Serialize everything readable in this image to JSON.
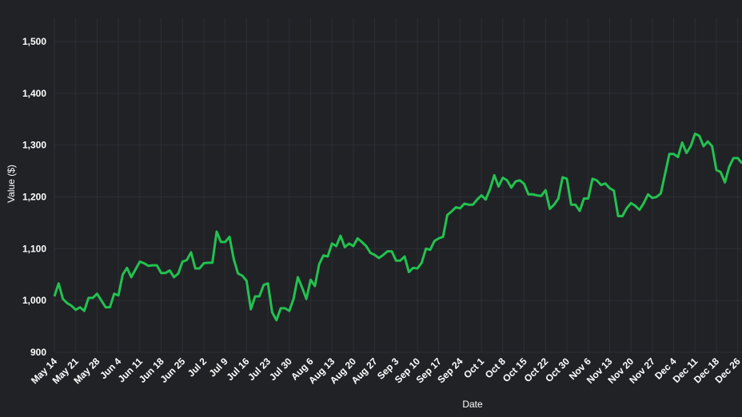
{
  "chart_data": {
    "type": "line",
    "x_label": "Date",
    "y_label": "Value ($)",
    "categories": [
      "May 14",
      null,
      null,
      null,
      null,
      "May 21",
      null,
      null,
      null,
      null,
      "May 28",
      null,
      null,
      null,
      null,
      "Jun 4",
      null,
      null,
      null,
      null,
      "Jun 11",
      null,
      null,
      null,
      null,
      "Jun 18",
      null,
      null,
      null,
      null,
      "Jun 25",
      null,
      null,
      null,
      null,
      "Jul 2",
      null,
      null,
      null,
      null,
      "Jul 9",
      null,
      null,
      null,
      null,
      "Jul 16",
      null,
      null,
      null,
      null,
      "Jul 23",
      null,
      null,
      null,
      null,
      "Jul 30",
      null,
      null,
      null,
      null,
      "Aug 6",
      null,
      null,
      null,
      null,
      "Aug 13",
      null,
      null,
      null,
      null,
      "Aug 20",
      null,
      null,
      null,
      null,
      "Aug 27",
      null,
      null,
      null,
      null,
      "Sep 3",
      null,
      null,
      null,
      null,
      "Sep 10",
      null,
      null,
      null,
      null,
      "Sep 17",
      null,
      null,
      null,
      null,
      "Sep 24",
      null,
      null,
      null,
      null,
      "Oct 1",
      null,
      null,
      null,
      null,
      "Oct 8",
      null,
      null,
      null,
      null,
      "Oct 15",
      null,
      null,
      null,
      null,
      "Oct 22",
      null,
      null,
      null,
      null,
      "Oct 30",
      null,
      null,
      null,
      null,
      "Nov 6",
      null,
      null,
      null,
      null,
      "Nov 13",
      null,
      null,
      null,
      null,
      "Nov 20",
      null,
      null,
      null,
      null,
      "Nov 27",
      null,
      null,
      null,
      null,
      "Dec 4",
      null,
      null,
      null,
      null,
      "Dec 11",
      null,
      null,
      null,
      null,
      "Dec 18",
      null,
      null,
      null,
      null,
      "Dec 26",
      null
    ],
    "series": [
      {
        "color": "#22c24f",
        "values": [
          1008,
          1033,
          1003,
          995,
          990,
          982,
          987,
          980,
          1005,
          1005,
          1013,
          1000,
          987,
          987,
          1013,
          1010,
          1050,
          1063,
          1045,
          1060,
          1075,
          1072,
          1067,
          1068,
          1068,
          1053,
          1053,
          1058,
          1045,
          1052,
          1075,
          1078,
          1093,
          1062,
          1062,
          1072,
          1073,
          1073,
          1133,
          1113,
          1113,
          1123,
          1080,
          1052,
          1048,
          1038,
          983,
          1008,
          1008,
          1030,
          1033,
          977,
          962,
          985,
          985,
          980,
          1003,
          1045,
          1025,
          1003,
          1040,
          1028,
          1070,
          1087,
          1085,
          1110,
          1105,
          1125,
          1103,
          1110,
          1105,
          1120,
          1113,
          1105,
          1092,
          1088,
          1082,
          1088,
          1095,
          1095,
          1077,
          1077,
          1085,
          1055,
          1063,
          1062,
          1073,
          1100,
          1098,
          1115,
          1120,
          1123,
          1165,
          1172,
          1180,
          1178,
          1187,
          1185,
          1185,
          1195,
          1203,
          1195,
          1215,
          1242,
          1220,
          1237,
          1232,
          1218,
          1230,
          1232,
          1225,
          1205,
          1205,
          1203,
          1202,
          1213,
          1177,
          1185,
          1197,
          1238,
          1235,
          1185,
          1185,
          1173,
          1197,
          1197,
          1235,
          1232,
          1223,
          1226,
          1217,
          1212,
          1163,
          1163,
          1178,
          1188,
          1183,
          1175,
          1188,
          1205,
          1198,
          1200,
          1207,
          1245,
          1283,
          1283,
          1277,
          1305,
          1285,
          1298,
          1322,
          1318,
          1298,
          1307,
          1298,
          1252,
          1248,
          1228,
          1258,
          1275,
          1275,
          1265
        ]
      }
    ],
    "ylim": [
      900,
      1500
    ],
    "yticks": [
      900,
      {
        "value": 1000,
        "label": "1,000"
      },
      {
        "value": 1100,
        "label": "1,100"
      },
      {
        "value": 1200,
        "label": "1,200"
      },
      {
        "value": 1300,
        "label": "1,300"
      },
      {
        "value": 1400,
        "label": "1,400"
      },
      {
        "value": 1500,
        "label": "1,500"
      }
    ],
    "grid": true
  }
}
